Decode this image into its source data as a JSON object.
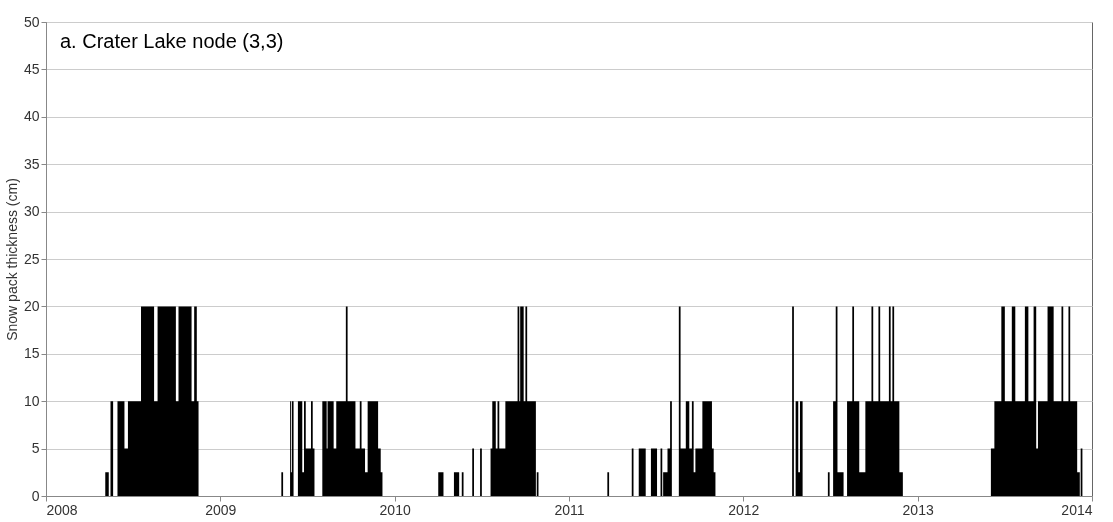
{
  "chart_data": {
    "type": "area",
    "title": "a. Crater Lake node (3,3)",
    "ylabel": "Snow pack thickness (cm)",
    "xlim": [
      2008,
      2014
    ],
    "xticks": [
      2008,
      2009,
      2010,
      2011,
      2012,
      2013,
      2014
    ],
    "ylim": [
      0,
      50
    ],
    "yticks": [
      0,
      5,
      10,
      15,
      20,
      25,
      30,
      35,
      40,
      45,
      50
    ],
    "grid": "y",
    "series": [
      {
        "color": "#000000",
        "x": [
          2008.34,
          2008.36,
          2008.37,
          2008.385,
          2008.41,
          2008.45,
          2008.47,
          2008.545,
          2008.62,
          2008.64,
          2008.745,
          2008.76,
          2008.835,
          2008.85,
          2008.865,
          2008.875,
          2009.35,
          2009.36,
          2009.4,
          2009.405,
          2009.41,
          2009.42,
          2009.445,
          2009.47,
          2009.48,
          2009.49,
          2009.52,
          2009.53,
          2009.54,
          2009.585,
          2009.61,
          2009.615,
          2009.65,
          2009.665,
          2009.72,
          2009.73,
          2009.775,
          2009.8,
          2009.81,
          2009.83,
          2009.845,
          2009.905,
          2009.92,
          2009.93,
          2010.25,
          2010.28,
          2010.34,
          2010.37,
          2010.385,
          2010.395,
          2010.445,
          2010.455,
          2010.49,
          2010.5,
          2010.55,
          2010.56,
          2010.58,
          2010.59,
          2010.6,
          2010.635,
          2010.705,
          2010.715,
          2010.72,
          2010.74,
          2010.75,
          2010.76,
          2010.81,
          2010.815,
          2010.825,
          2011.22,
          2011.23,
          2011.36,
          2011.37,
          2011.4,
          2011.44,
          2011.47,
          2011.505,
          2011.525,
          2011.535,
          2011.54,
          2011.565,
          2011.58,
          2011.59,
          2011.63,
          2011.64,
          2011.67,
          2011.69,
          2011.705,
          2011.715,
          2011.725,
          2011.765,
          2011.82,
          2011.83,
          2011.84,
          2012.28,
          2012.29,
          2012.3,
          2012.315,
          2012.325,
          2012.34,
          2012.485,
          2012.495,
          2012.515,
          2012.53,
          2012.54,
          2012.575,
          2012.595,
          2012.625,
          2012.635,
          2012.665,
          2012.7,
          2012.735,
          2012.745,
          2012.775,
          2012.785,
          2012.835,
          2012.845,
          2012.855,
          2012.865,
          2012.895,
          2012.915,
          2013.42,
          2013.44,
          2013.48,
          2013.5,
          2013.54,
          2013.56,
          2013.615,
          2013.635,
          2013.665,
          2013.68,
          2013.69,
          2013.745,
          2013.78,
          2013.825,
          2013.835,
          2013.865,
          2013.875,
          2013.915,
          2013.93,
          2013.935,
          2013.945
        ],
        "values": [
          2.5,
          0,
          10,
          0,
          10,
          5,
          10,
          20,
          10,
          20,
          10,
          20,
          10,
          20,
          10,
          0,
          2.5,
          0,
          10,
          2.5,
          10,
          0,
          10,
          2.5,
          10,
          5,
          10,
          5,
          0,
          10,
          5,
          10,
          5,
          10,
          20,
          10,
          5,
          10,
          5,
          2.5,
          10,
          5,
          2.5,
          0,
          2.5,
          0,
          2.5,
          0,
          2.5,
          0,
          5,
          0,
          5,
          0,
          5,
          10,
          5,
          10,
          5,
          10,
          20,
          10,
          20,
          10,
          20,
          10,
          0,
          2.5,
          0,
          2.5,
          0,
          5,
          0,
          5,
          0,
          5,
          0,
          5,
          0,
          2.5,
          5,
          10,
          0,
          20,
          5,
          10,
          5,
          10,
          2.5,
          5,
          10,
          5,
          2.5,
          0,
          20,
          0,
          10,
          2.5,
          10,
          0,
          2.5,
          0,
          10,
          20,
          2.5,
          0,
          10,
          20,
          10,
          2.5,
          10,
          20,
          10,
          20,
          10,
          20,
          10,
          20,
          10,
          2.5,
          0,
          5,
          10,
          20,
          10,
          20,
          10,
          20,
          10,
          20,
          5,
          10,
          20,
          10,
          20,
          10,
          20,
          10,
          2.5,
          0,
          5,
          0
        ]
      }
    ]
  }
}
